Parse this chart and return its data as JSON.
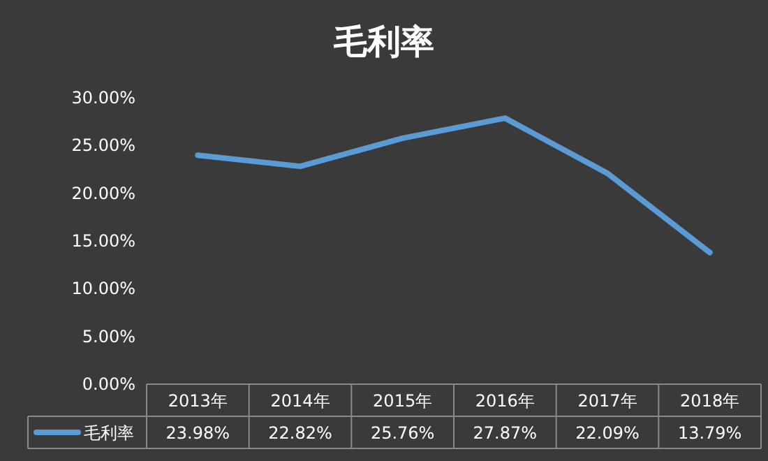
{
  "chart_data": {
    "type": "line",
    "title": "毛利率",
    "categories": [
      "2013年",
      "2014年",
      "2015年",
      "2016年",
      "2017年",
      "2018年"
    ],
    "series": [
      {
        "name": "毛利率",
        "color": "#5b9bd5",
        "values": [
          23.98,
          22.82,
          25.76,
          27.87,
          22.09,
          13.79
        ],
        "value_labels": [
          "23.98%",
          "22.82%",
          "25.76%",
          "27.87%",
          "22.09%",
          "13.79%"
        ]
      }
    ],
    "ylim": [
      0,
      30
    ],
    "yticks": [
      {
        "value": 0,
        "label": "0.00%"
      },
      {
        "value": 5,
        "label": "5.00%"
      },
      {
        "value": 10,
        "label": "10.00%"
      },
      {
        "value": 15,
        "label": "15.00%"
      },
      {
        "value": 20,
        "label": "20.00%"
      },
      {
        "value": 25,
        "label": "25.00%"
      },
      {
        "value": 30,
        "label": "30.00%"
      }
    ],
    "legend": "bottom"
  }
}
